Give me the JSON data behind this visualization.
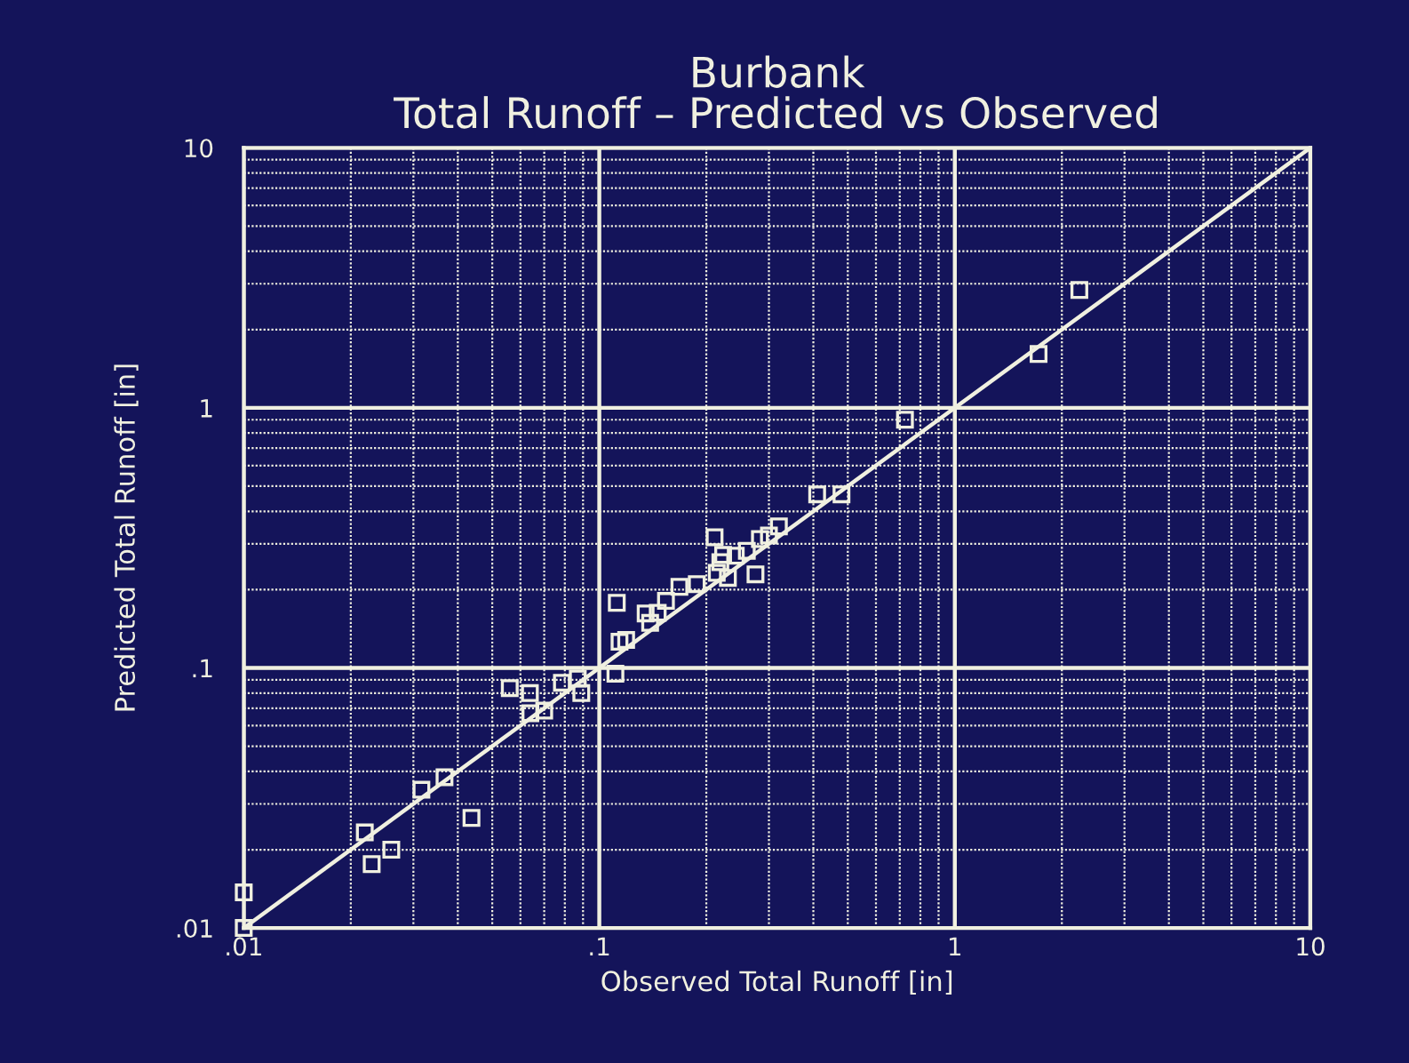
{
  "chart_data": {
    "type": "scatter",
    "title": "Burbank\nTotal Runoff – Predicted vs Observed",
    "xlabel": "Observed Total Runoff [in]",
    "ylabel": "Predicted Total Runoff [in]",
    "log": "xy",
    "grid": true,
    "marker": "square",
    "xlim": [
      0.01,
      10
    ],
    "ylim": [
      0.01,
      10
    ],
    "xticks": [
      {
        "value": 0.01,
        "label": ".01"
      },
      {
        "value": 0.1,
        "label": ".1"
      },
      1,
      10
    ],
    "yticks": [
      {
        "value": 0.01,
        "label": ".01"
      },
      {
        "value": 0.1,
        "label": ".1"
      },
      1,
      10
    ],
    "series": [
      {
        "color": "#f0f0e0",
        "x": [
          0.01,
          0.01,
          0.0219,
          0.0229,
          0.026,
          0.0316,
          0.0367,
          0.0437,
          0.056,
          0.0638,
          0.064,
          0.07,
          0.0785,
          0.087,
          0.089,
          0.112,
          0.111,
          0.114,
          0.119,
          0.135,
          0.139,
          0.146,
          0.154,
          0.168,
          0.188,
          0.211,
          0.214,
          0.219,
          0.223,
          0.23,
          0.242,
          0.26,
          0.275,
          0.283,
          0.3,
          0.32,
          0.41,
          0.48,
          0.724,
          1.72,
          2.24
        ],
        "values": [
          0.0137,
          0.01,
          0.0233,
          0.0176,
          0.02,
          0.034,
          0.038,
          0.0265,
          0.0836,
          0.08,
          0.067,
          0.0685,
          0.0877,
          0.091,
          0.08,
          0.178,
          0.095,
          0.126,
          0.128,
          0.162,
          0.149,
          0.163,
          0.181,
          0.205,
          0.21,
          0.318,
          0.232,
          0.255,
          0.272,
          0.222,
          0.27,
          0.282,
          0.229,
          0.313,
          0.323,
          0.35,
          0.465,
          0.465,
          0.9,
          1.61,
          2.84
        ]
      },
      {
        "type": "line",
        "marker": "none",
        "color": "#f0f0e0",
        "x": [
          0.01,
          10
        ],
        "values": [
          0.01,
          10
        ]
      }
    ]
  }
}
